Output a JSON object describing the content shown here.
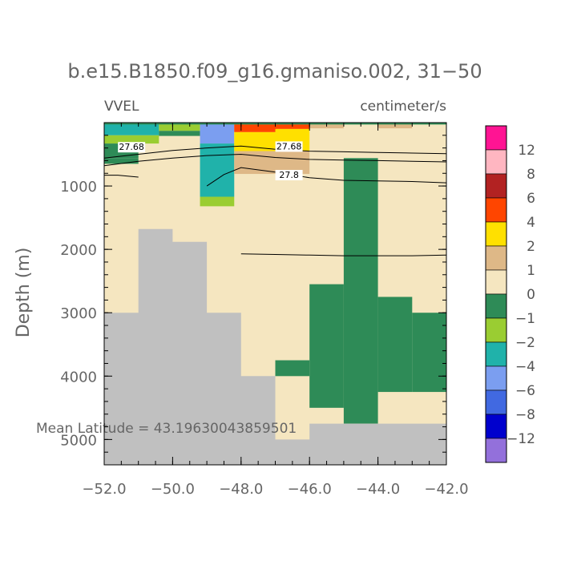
{
  "chart_data": {
    "type": "heatmap",
    "title": "b.e15.B1850.f09_g16.gmaniso.002, 31−50",
    "left_label": "VVEL",
    "units": "centimeter/s",
    "ylabel": "Depth (m)",
    "xlabel": "",
    "xlim": [
      -52,
      -42
    ],
    "ylim": [
      5400,
      0
    ],
    "x_ticks": [
      -52,
      -50,
      -48,
      -46,
      -44,
      -42
    ],
    "x_tick_labels": [
      "−52.0",
      "−50.0",
      "−48.0",
      "−46.0",
      "−44.0",
      "−42.0"
    ],
    "y_ticks": [
      1000,
      2000,
      3000,
      4000,
      5000
    ],
    "y_tick_labels": [
      "1000",
      "2000",
      "3000",
      "4000",
      "5000"
    ],
    "annotation": "Mean Latitude = 43.19630043859501",
    "legend": {
      "placement": "right",
      "labels": [
        "12",
        "8",
        "6",
        "4",
        "2",
        "1",
        "0",
        "−1",
        "−2",
        "−4",
        "−6",
        "−8",
        "−12"
      ],
      "colors": [
        "#ff1493",
        "#ffb6c1",
        "#b22222",
        "#ff4500",
        "#ffe000",
        "#deb887",
        "#f5e6c0",
        "#2e8b57",
        "#9acd32",
        "#20b2aa",
        "#7b9ef0",
        "#4169e1",
        "#0000cd",
        "#9370db"
      ]
    },
    "fill_colors": {
      "background": "#f5e6c0",
      "land": "#c0c0c0",
      "neg1": "#2e8b57",
      "neg2": "#9acd32",
      "neg4": "#20b2aa",
      "neg6": "#7b9ef0",
      "pos1": "#deb887",
      "pos2": "#ffe000",
      "pos4": "#ff4500"
    },
    "cells": [
      {
        "x": [
          -52.0,
          -50.4
        ],
        "y": [
          0,
          200
        ],
        "c": "neg4"
      },
      {
        "x": [
          -52.0,
          -50.4
        ],
        "y": [
          200,
          330
        ],
        "c": "neg2"
      },
      {
        "x": [
          -52.0,
          -51.0
        ],
        "y": [
          330,
          560
        ],
        "c": "neg1"
      },
      {
        "x": [
          -52.0,
          -51.0
        ],
        "y": [
          560,
          650
        ],
        "c": "neg1"
      },
      {
        "x": [
          -50.4,
          -49.2
        ],
        "y": [
          0,
          130
        ],
        "c": "neg2"
      },
      {
        "x": [
          -50.4,
          -49.2
        ],
        "y": [
          130,
          210
        ],
        "c": "neg1"
      },
      {
        "x": [
          -49.2,
          -48.2
        ],
        "y": [
          0,
          330
        ],
        "c": "neg6"
      },
      {
        "x": [
          -49.2,
          -48.2
        ],
        "y": [
          330,
          1170
        ],
        "c": "neg4"
      },
      {
        "x": [
          -49.2,
          -48.2
        ],
        "y": [
          1170,
          1320
        ],
        "c": "neg2"
      },
      {
        "x": [
          -48.2,
          -47.0
        ],
        "y": [
          0,
          150
        ],
        "c": "pos4"
      },
      {
        "x": [
          -48.2,
          -47.0
        ],
        "y": [
          150,
          450
        ],
        "c": "pos2"
      },
      {
        "x": [
          -48.2,
          -46.0
        ],
        "y": [
          450,
          810
        ],
        "c": "pos1"
      },
      {
        "x": [
          -47.0,
          -46.0
        ],
        "y": [
          0,
          100
        ],
        "c": "pos4"
      },
      {
        "x": [
          -47.0,
          -46.0
        ],
        "y": [
          100,
          450
        ],
        "c": "pos2"
      },
      {
        "x": [
          -46.0,
          -45.0
        ],
        "y": [
          0,
          90
        ],
        "c": "pos1"
      },
      {
        "x": [
          -44.0,
          -43.0
        ],
        "y": [
          0,
          90
        ],
        "c": "pos1"
      },
      {
        "x": [
          -52.0,
          -42.0
        ],
        "y": [
          0,
          30
        ],
        "c": "neg1"
      },
      {
        "x": [
          -45.0,
          -44.0
        ],
        "y": [
          560,
          4750
        ],
        "c": "neg1"
      },
      {
        "x": [
          -46.0,
          -45.0
        ],
        "y": [
          2550,
          4500
        ],
        "c": "neg1"
      },
      {
        "x": [
          -47.0,
          -46.0
        ],
        "y": [
          3750,
          4000
        ],
        "c": "neg1"
      },
      {
        "x": [
          -44.0,
          -43.0
        ],
        "y": [
          2750,
          4250
        ],
        "c": "neg1"
      },
      {
        "x": [
          -43.0,
          -42.0
        ],
        "y": [
          3000,
          4250
        ],
        "c": "neg1"
      }
    ],
    "land": [
      [
        -52.0,
        5400
      ],
      [
        -52.0,
        3000
      ],
      [
        -51.0,
        3000
      ],
      [
        -51.0,
        1680
      ],
      [
        -50.0,
        1680
      ],
      [
        -50.0,
        1880
      ],
      [
        -49.0,
        1880
      ],
      [
        -49.0,
        3000
      ],
      [
        -48.0,
        3000
      ],
      [
        -48.0,
        4000
      ],
      [
        -47.0,
        4000
      ],
      [
        -47.0,
        5000
      ],
      [
        -46.0,
        5000
      ],
      [
        -46.0,
        4750
      ],
      [
        -42.0,
        4750
      ],
      [
        -42.0,
        5400
      ]
    ],
    "contours": [
      {
        "label": "27.68",
        "label_at": [
          -51.2,
          420
        ],
        "points": [
          [
            -52.0,
            560
          ],
          [
            -51.0,
            500
          ],
          [
            -50.0,
            440
          ],
          [
            -49.0,
            400
          ],
          [
            -48.0,
            370
          ],
          [
            -47.0,
            420
          ],
          [
            -46.0,
            450
          ],
          [
            -45.0,
            460
          ],
          [
            -44.0,
            470
          ],
          [
            -43.0,
            480
          ],
          [
            -42.0,
            490
          ]
        ]
      },
      {
        "label": "27.68",
        "label_at": [
          -46.6,
          410
        ],
        "points": [
          [
            -52.0,
            680
          ],
          [
            -51.0,
            610
          ],
          [
            -50.0,
            560
          ],
          [
            -49.0,
            520
          ],
          [
            -48.0,
            500
          ],
          [
            -47.0,
            550
          ],
          [
            -46.0,
            580
          ],
          [
            -45.0,
            590
          ],
          [
            -44.0,
            600
          ],
          [
            -43.0,
            610
          ],
          [
            -42.0,
            620
          ]
        ]
      },
      {
        "label": "27.8",
        "label_at": [
          -46.6,
          860
        ],
        "points": [
          [
            -49.0,
            1000
          ],
          [
            -48.5,
            820
          ],
          [
            -48.0,
            710
          ],
          [
            -47.0,
            780
          ],
          [
            -46.0,
            870
          ],
          [
            -45.0,
            910
          ],
          [
            -44.0,
            920
          ],
          [
            -43.0,
            930
          ],
          [
            -42.0,
            950
          ]
        ]
      },
      {
        "label": "",
        "points": [
          [
            -52.0,
            830
          ],
          [
            -51.6,
            830
          ],
          [
            -51.0,
            860
          ]
        ]
      },
      {
        "label": "",
        "points": [
          [
            -48.0,
            2070
          ],
          [
            -47.0,
            2080
          ],
          [
            -46.0,
            2090
          ],
          [
            -45.0,
            2100
          ],
          [
            -44.0,
            2100
          ],
          [
            -43.0,
            2100
          ],
          [
            -42.0,
            2090
          ]
        ]
      }
    ]
  }
}
